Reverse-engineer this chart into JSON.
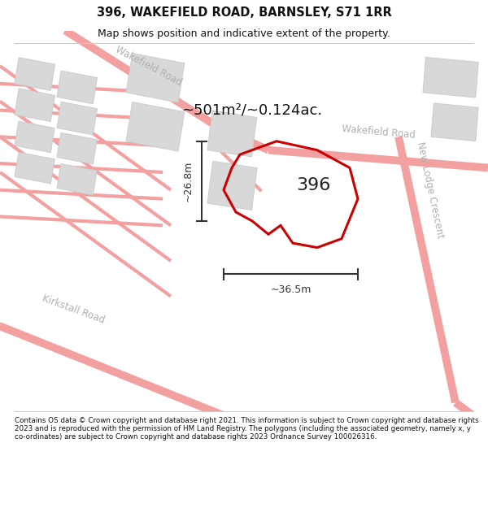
{
  "title": "396, WAKEFIELD ROAD, BARNSLEY, S71 1RR",
  "subtitle": "Map shows position and indicative extent of the property.",
  "area_text": "~501m²/~0.124ac.",
  "label_396": "396",
  "dim_width": "~36.5m",
  "dim_height": "~26.8m",
  "footer": "Contains OS data © Crown copyright and database right 2021. This information is subject to Crown copyright and database rights 2023 and is reproduced with the permission of HM Land Registry. The polygons (including the associated geometry, namely x, y co-ordinates) are subject to Crown copyright and database rights 2023 Ordnance Survey 100026316.",
  "bg_color": "#ffffff",
  "road_color": "#f2a0a0",
  "road_thin_color": "#f2a0a0",
  "building_color": "#d8d8d8",
  "building_edge": "#cccccc",
  "property_color": "#cc0000",
  "dim_color": "#333333",
  "title_color": "#111111",
  "road_label_color": "#b0b0b0",
  "footer_color": "#111111",
  "sep_color": "#cccccc"
}
